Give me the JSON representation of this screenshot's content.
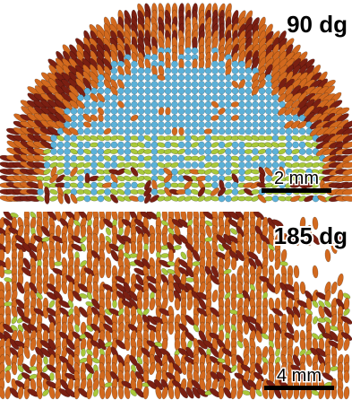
{
  "panels": [
    {
      "angle_label": "90 dg",
      "scale_label": "2 mm"
    },
    {
      "angle_label": "185 dg",
      "scale_label": "4 mm"
    }
  ]
}
